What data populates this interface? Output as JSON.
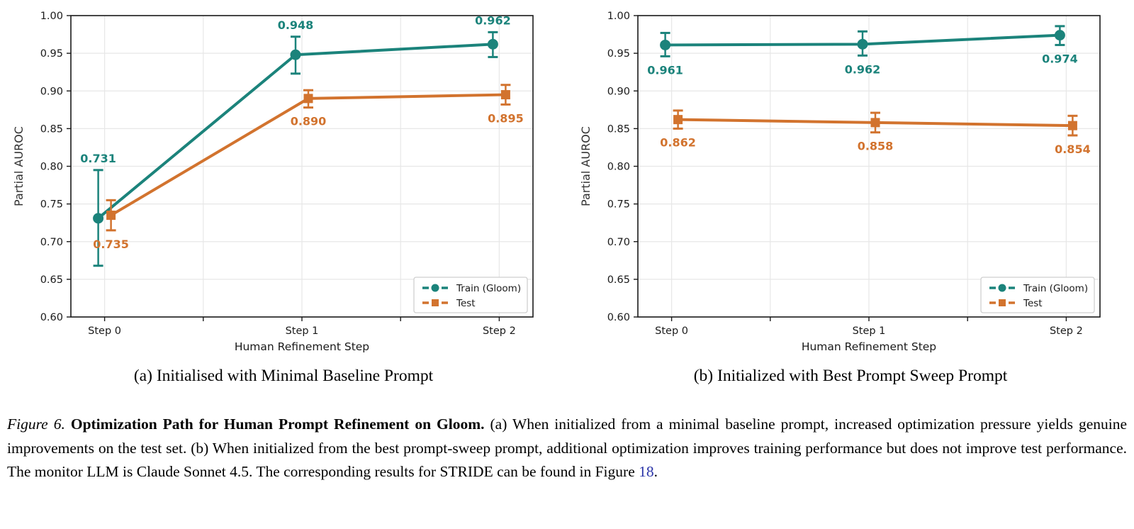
{
  "chart_data": [
    {
      "type": "line",
      "subcaption": "(a) Initialised with Minimal Baseline Prompt",
      "xlabel": "Human Refinement Step",
      "ylabel": "Partial AUROC",
      "categories": [
        "Step 0",
        "Step 1",
        "Step 2"
      ],
      "ylim": [
        0.6,
        1.0
      ],
      "ytick_step": 0.05,
      "grid": true,
      "legend_position": "lower right",
      "series": [
        {
          "name": "Train (Gloom)",
          "color": "#1b837b",
          "marker": "circle",
          "label_side": "above",
          "values": [
            0.731,
            0.948,
            0.962
          ],
          "labels": [
            "0.731",
            "0.948",
            "0.962"
          ],
          "err_lo": [
            0.063,
            0.025,
            0.017
          ],
          "err_hi": [
            0.064,
            0.024,
            0.016
          ]
        },
        {
          "name": "Test",
          "color": "#d2732e",
          "marker": "square",
          "label_side": "below",
          "values": [
            0.735,
            0.89,
            0.895
          ],
          "labels": [
            "0.735",
            "0.890",
            "0.895"
          ],
          "err_lo": [
            0.02,
            0.012,
            0.013
          ],
          "err_hi": [
            0.02,
            0.011,
            0.013
          ]
        }
      ]
    },
    {
      "type": "line",
      "subcaption": "(b) Initialized with Best Prompt Sweep Prompt",
      "xlabel": "Human Refinement Step",
      "ylabel": "Partial AUROC",
      "categories": [
        "Step 0",
        "Step 1",
        "Step 2"
      ],
      "ylim": [
        0.6,
        1.0
      ],
      "ytick_step": 0.05,
      "grid": true,
      "legend_position": "lower right",
      "series": [
        {
          "name": "Train (Gloom)",
          "color": "#1b837b",
          "marker": "circle",
          "label_side": "below",
          "values": [
            0.961,
            0.962,
            0.974
          ],
          "labels": [
            "0.961",
            "0.962",
            "0.974"
          ],
          "err_lo": [
            0.015,
            0.015,
            0.013
          ],
          "err_hi": [
            0.016,
            0.017,
            0.012
          ]
        },
        {
          "name": "Test",
          "color": "#d2732e",
          "marker": "square",
          "label_side": "below",
          "values": [
            0.862,
            0.858,
            0.854
          ],
          "labels": [
            "0.862",
            "0.858",
            "0.854"
          ],
          "err_lo": [
            0.012,
            0.013,
            0.013
          ],
          "err_hi": [
            0.012,
            0.013,
            0.013
          ]
        }
      ]
    }
  ],
  "legend": {
    "items": [
      {
        "label": "Train (Gloom)",
        "color": "#1b837b",
        "marker": "circle"
      },
      {
        "label": "Test",
        "color": "#d2732e",
        "marker": "square"
      }
    ]
  },
  "caption": {
    "figure_label": "Figure 6.",
    "title_bold": "Optimization Path for Human Prompt Refinement on Gloom.",
    "body_before_link": "(a) When initialized from a minimal baseline prompt, increased optimization pressure yields genuine improvements on the test set. (b) When initialized from the best prompt-sweep prompt, additional optimization improves training performance but does not improve test performance. The monitor LLM is Claude Sonnet 4.5. The corresponding results for STRIDE can be found in Figure ",
    "link_text": "18",
    "after_link": "."
  },
  "colors": {
    "train": "#1b837b",
    "test": "#d2732e",
    "link_blue": "#2b35a8",
    "gridline": "#e7e7e7",
    "spine": "#1a1a1a"
  }
}
